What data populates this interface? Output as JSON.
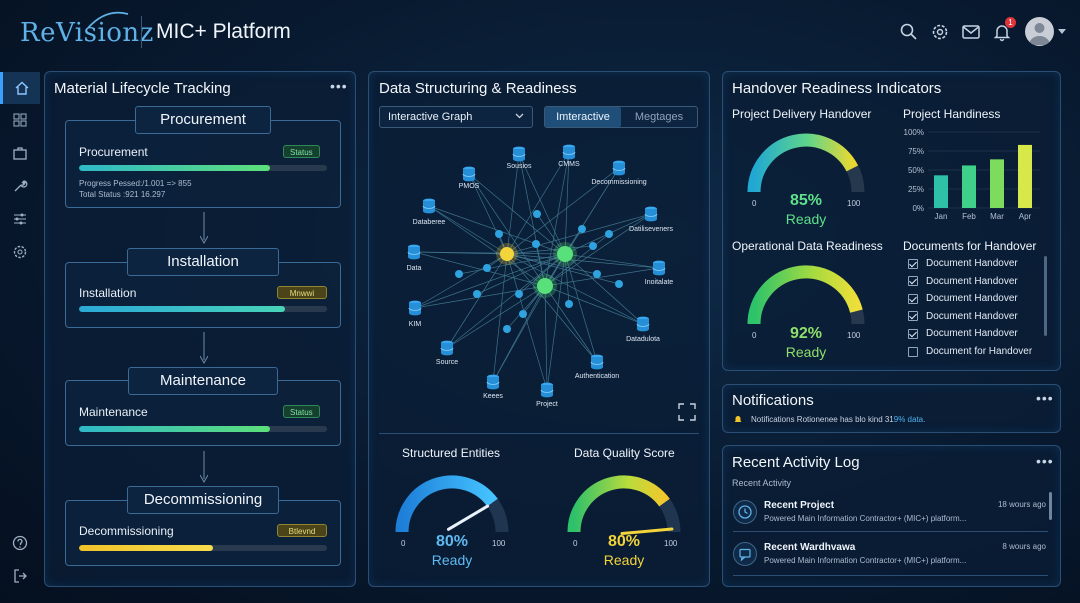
{
  "header": {
    "logo": "ReVisionz",
    "app_title": "MIC+ Platform",
    "notification_count": "1",
    "icons": [
      "search-icon",
      "gear-icon",
      "mail-icon",
      "bell-icon",
      "avatar"
    ]
  },
  "sidebar": {
    "items": [
      {
        "icon": "home-icon",
        "active": true
      },
      {
        "icon": "grid-icon"
      },
      {
        "icon": "briefcase-icon"
      },
      {
        "icon": "wrench-icon"
      },
      {
        "icon": "sliders-icon"
      },
      {
        "icon": "gear-icon"
      }
    ],
    "bottom": [
      {
        "icon": "help-icon"
      },
      {
        "icon": "logout-icon"
      }
    ]
  },
  "lifecycle": {
    "title": "Material Lifecycle Tracking",
    "stages": [
      {
        "label": "Procurement",
        "name": "Procurement",
        "badge": "Status",
        "progress": 0.77,
        "color": "green",
        "meta1": "Progress Pessed:/1.001 => 855",
        "meta2": "Total Status :921 16.297"
      },
      {
        "label": "Installation",
        "name": "Installation",
        "badge": "Mnwwi",
        "progress": 0.83,
        "color": "teal"
      },
      {
        "label": "Maintenance",
        "name": "Maintenance",
        "badge": "Status",
        "progress": 0.77,
        "color": "green"
      },
      {
        "label": "Decommissioning",
        "name": "Decommissioning",
        "badge": "Btlevnd",
        "progress": 0.54,
        "color": "yellow"
      }
    ]
  },
  "structuring": {
    "title": "Data Structuring & Readiness",
    "dropdown_value": "Interactive Graph",
    "toggle": [
      "Imteractive",
      "Megtages"
    ],
    "graph_labels": [
      "PMOS",
      "Sousios",
      "CMMS",
      "Decommissioning",
      "Databeree",
      "Datiliseveners",
      "Data",
      "Inoitalate",
      "KIM",
      "Datadulota",
      "Source",
      "Authentication",
      "Keees",
      "Project"
    ],
    "structured": {
      "title": "Structured Entities",
      "value": "80%",
      "sub": "Ready",
      "min": "0",
      "max": "100",
      "fraction": 0.8
    },
    "quality": {
      "title": "Data Quality Score",
      "value": "80%",
      "sub": "Ready",
      "min": "0",
      "max": "100",
      "fraction": 0.8
    }
  },
  "handover": {
    "title": "Handover Readiness Indicators",
    "delivery": {
      "title": "Project Delivery Handover",
      "value": "85%",
      "sub": "Ready",
      "min": "0",
      "max": "100",
      "fraction": 0.85
    },
    "operational": {
      "title": "Operational Data Readiness",
      "value": "92%",
      "sub": "Ready",
      "min": "0",
      "max": "100",
      "fraction": 0.92
    },
    "handiness": {
      "title": "Project Handiness"
    },
    "documents": {
      "title": "Documents for Handover",
      "items": [
        {
          "label": "Document Handover",
          "checked": true
        },
        {
          "label": "Document Handover",
          "checked": true
        },
        {
          "label": "Document Handover",
          "checked": true
        },
        {
          "label": "Document Handover",
          "checked": true
        },
        {
          "label": "Document Handover",
          "checked": true
        },
        {
          "label": "Document for Handover",
          "checked": false
        }
      ]
    }
  },
  "chart_data": {
    "type": "bar",
    "title": "Project Handiness",
    "categories": [
      "Jan",
      "Feb",
      "Mar",
      "Apr"
    ],
    "values": [
      43,
      56,
      64,
      83
    ],
    "ylim": [
      0,
      100
    ],
    "yticks": [
      "0%",
      "25%",
      "50%",
      "75%",
      "100%"
    ],
    "colors": [
      "#2fc0a8",
      "#3fd08a",
      "#7ddc5e",
      "#d8e84a"
    ]
  },
  "notifications": {
    "title": "Notifications",
    "text": "Notifications Rotionenee has blo kind 31",
    "highlight": "9% data."
  },
  "activity": {
    "title": "Recent Activity Log",
    "subtitle": "Recent Activity",
    "items": [
      {
        "title": "Recent Project",
        "desc": "Powered Main Information Contractor+ (MIC+) platform...",
        "time": "18 wours ago",
        "icon": "clock-icon"
      },
      {
        "title": "Recent Wardhvawa",
        "desc": "Powered Main Information Contractor+ (MIC+) platform...",
        "time": "8 wours ago",
        "icon": "chat-icon"
      }
    ]
  }
}
